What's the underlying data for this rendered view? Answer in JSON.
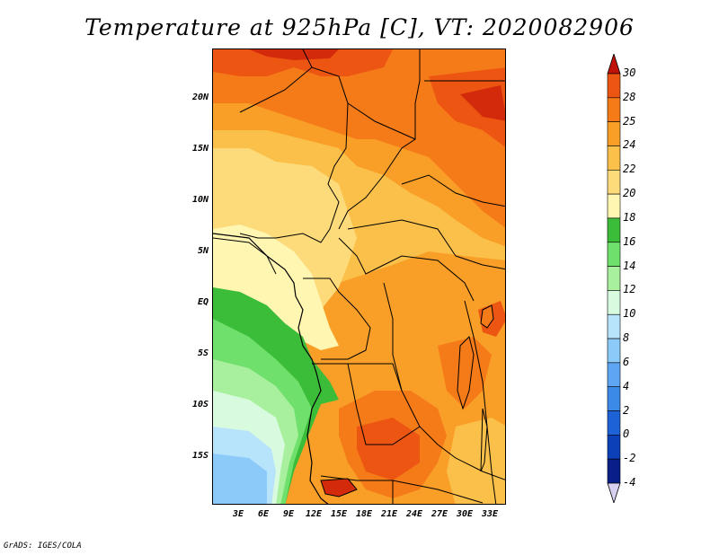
{
  "title": "Temperature at 925hPa [C], VT: 2020082906",
  "credit": "GrADS: IGES/COLA",
  "lat_labels": [
    "20N",
    "15N",
    "10N",
    "5N",
    "EQ",
    "5S",
    "10S",
    "15S"
  ],
  "lon_labels": [
    "3E",
    "6E",
    "9E",
    "12E",
    "15E",
    "18E",
    "21E",
    "24E",
    "27E",
    "30E",
    "33E"
  ],
  "colorbar": {
    "labels": [
      "30",
      "28",
      "25",
      "24",
      "22",
      "20",
      "18",
      "16",
      "14",
      "12",
      "10",
      "8",
      "6",
      "4",
      "2",
      "0",
      "-2",
      "-4"
    ],
    "colors": [
      "#d42a0c",
      "#ed5512",
      "#f57a18",
      "#f99f28",
      "#fbc04a",
      "#fdda7a",
      "#fff6b2",
      "#3cbd3a",
      "#6fe06b",
      "#a8f09e",
      "#d8fbe0",
      "#b8e4fb",
      "#8ccafa",
      "#5ea6f4",
      "#3c8ae8",
      "#1e62d8",
      "#0c40b8",
      "#0a1e8a"
    ],
    "top_arrow_color": "#c01208",
    "bottom_arrow_color": "#d8d0f0"
  }
}
